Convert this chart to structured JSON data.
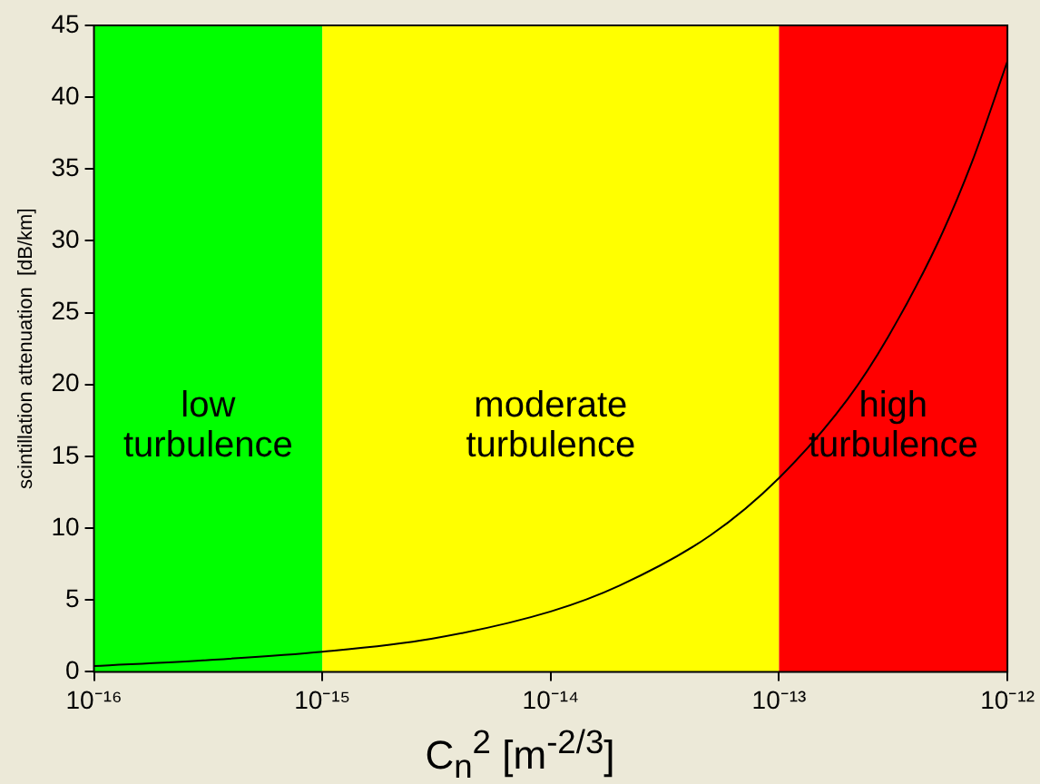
{
  "chart_data": {
    "type": "line",
    "xlabel": "C$_{n}$$^{2}$  [m$^{-2/3}$]",
    "ylabel": "scintillation attenuation  [dB/km]",
    "log": "x",
    "x": [
      1e-16,
      3e-16,
      1e-15,
      3e-15,
      1e-14,
      2e-14,
      5e-14,
      1e-13,
      2e-13,
      3e-13,
      5e-13,
      7e-13,
      1e-12
    ],
    "series": [
      {
        "color": "#000000",
        "values": [
          0.4,
          0.8,
          1.4,
          2.3,
          4.2,
          6,
          9.5,
          13.5,
          19,
          23.3,
          30,
          35.5,
          42.5
        ]
      }
    ],
    "xlim": [
      1e-16,
      1e-12
    ],
    "xticks": [
      {
        "value": 1e-16,
        "label": "10⁻¹⁶"
      },
      {
        "value": 1e-15,
        "label": "10⁻¹⁵"
      },
      {
        "value": 1e-14,
        "label": "10⁻¹⁴"
      },
      {
        "value": 1e-13,
        "label": "10⁻¹³"
      },
      {
        "value": 1e-12,
        "label": "10⁻¹²"
      }
    ],
    "ylim": [
      0,
      45
    ],
    "yticks": [
      0,
      5,
      10,
      15,
      20,
      25,
      30,
      35,
      40,
      45
    ],
    "bands": [
      {
        "axis": "x",
        "from": 1e-16,
        "to": 1e-15,
        "label": "low turbulence",
        "color": "#00ff00"
      },
      {
        "axis": "x",
        "from": 1e-15,
        "to": 1e-13,
        "label": "moderate turbulence",
        "color": "#ffff00"
      },
      {
        "axis": "x",
        "from": 1e-13,
        "to": 1e-12,
        "label": "high turbulence",
        "color": "#ff0000"
      }
    ],
    "marker": "none",
    "line_style": "solid"
  }
}
